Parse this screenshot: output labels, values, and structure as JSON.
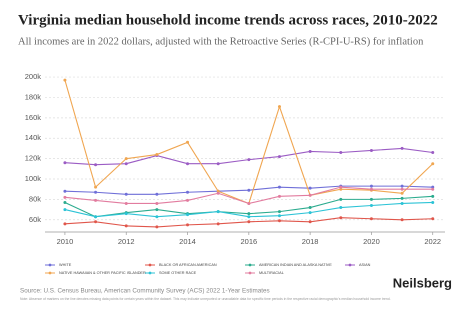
{
  "chart_data": {
    "type": "line",
    "title": "Virginia median household income trends across races, 2010-2022",
    "subtitle": "All incomes are in 2022 dollars, adjusted with the Retroactive Series (R-CPI-U-RS) for inflation",
    "x": [
      2010,
      2011,
      2012,
      2013,
      2014,
      2015,
      2016,
      2017,
      2018,
      2019,
      2020,
      2021,
      2022
    ],
    "xlim": [
      2009.35,
      2022.4
    ],
    "xticks": [
      2010,
      2012,
      2014,
      2016,
      2018,
      2020,
      2022
    ],
    "ylim": [
      48000,
      204000
    ],
    "yticks": [
      {
        "value": 60000,
        "label": "60k"
      },
      {
        "value": 80000,
        "label": "80k"
      },
      {
        "value": 100000,
        "label": "100k"
      },
      {
        "value": 120000,
        "label": "120k"
      },
      {
        "value": 140000,
        "label": "140k"
      },
      {
        "value": 160000,
        "label": "160k"
      },
      {
        "value": 180000,
        "label": "180k"
      },
      {
        "value": 200000,
        "label": "200k"
      }
    ],
    "grid": true,
    "legend": "bottom",
    "series": [
      {
        "name": "WHITE",
        "color": "#6f6fd8",
        "values": [
          88000,
          87000,
          85000,
          85000,
          87000,
          88000,
          89000,
          92000,
          91000,
          93000,
          93000,
          93000,
          92000
        ]
      },
      {
        "name": "BLACK OR AFRICAN AMERICAN",
        "color": "#e0564b",
        "values": [
          56000,
          58000,
          54000,
          53000,
          55000,
          56000,
          58000,
          59000,
          58000,
          62000,
          61000,
          60000,
          61000
        ]
      },
      {
        "name": "AMERICAN INDIAN AND ALASKA NATIVE",
        "color": "#2bab8e",
        "values": [
          77000,
          63000,
          67000,
          70000,
          66000,
          68000,
          66000,
          68000,
          72000,
          80000,
          80000,
          81000,
          83000
        ]
      },
      {
        "name": "ASIAN",
        "color": "#9b5cc4",
        "values": [
          116000,
          114000,
          115000,
          123000,
          115000,
          115000,
          119000,
          122000,
          127000,
          126000,
          128000,
          130000,
          126000
        ]
      },
      {
        "name": "NATIVE HAWAIIAN & OTHER PACIFIC ISLANDER",
        "color": "#f0a651",
        "values": [
          197000,
          92000,
          120000,
          124000,
          136000,
          88000,
          76000,
          171000,
          84000,
          90000,
          89000,
          86000,
          115000
        ]
      },
      {
        "name": "SOME OTHER RACE",
        "color": "#2cc3d6",
        "values": [
          70000,
          63000,
          66000,
          63000,
          65000,
          68000,
          63000,
          64000,
          67000,
          72000,
          74000,
          76000,
          77000
        ]
      },
      {
        "name": "MULTIRACIAL",
        "color": "#e27c9f",
        "values": [
          82000,
          79000,
          76000,
          76000,
          79000,
          86000,
          76000,
          83000,
          84000,
          92000,
          90000,
          90000,
          90000
        ]
      }
    ],
    "source": "Source: U.S. Census Bureau, American Community Survey (ACS) 2022 1-Year Estimates",
    "note": "Note: Absence of markers on the line denotes missing data points for certain years within the dataset. This may indicate unreported or unavailable data for specific time periods in the respective racial demographic's median household income trend.",
    "brand": "Neilsberg"
  }
}
